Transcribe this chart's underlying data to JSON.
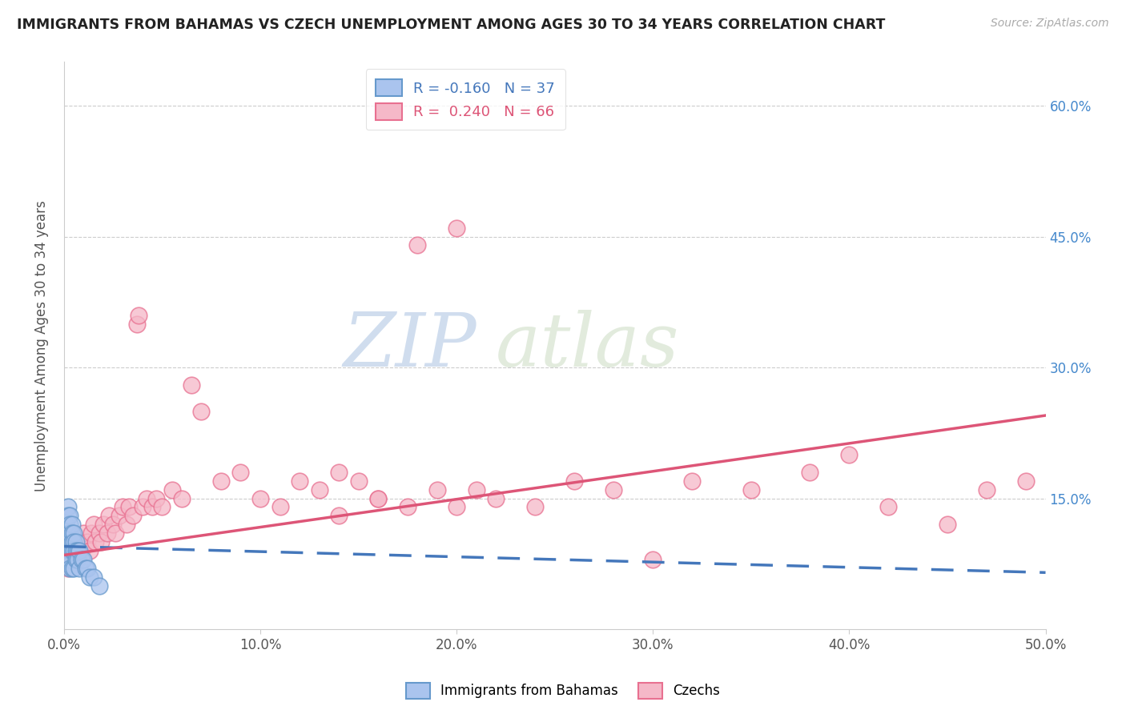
{
  "title": "IMMIGRANTS FROM BAHAMAS VS CZECH UNEMPLOYMENT AMONG AGES 30 TO 34 YEARS CORRELATION CHART",
  "source_text": "Source: ZipAtlas.com",
  "ylabel": "Unemployment Among Ages 30 to 34 years",
  "xlim": [
    0.0,
    0.5
  ],
  "ylim": [
    0.0,
    0.65
  ],
  "xtick_vals": [
    0.0,
    0.1,
    0.2,
    0.3,
    0.4,
    0.5
  ],
  "xtick_labels": [
    "0.0%",
    "10.0%",
    "20.0%",
    "30.0%",
    "40.0%",
    "50.0%"
  ],
  "ytick_vals": [
    0.0,
    0.15,
    0.3,
    0.45,
    0.6
  ],
  "right_ytick_labels": [
    "",
    "15.0%",
    "30.0%",
    "45.0%",
    "60.0%"
  ],
  "blue_R": -0.16,
  "blue_N": 37,
  "pink_R": 0.24,
  "pink_N": 66,
  "blue_color": "#aac4ee",
  "pink_color": "#f5b8c8",
  "blue_edge_color": "#6699cc",
  "pink_edge_color": "#e87090",
  "blue_line_color": "#4477bb",
  "pink_line_color": "#dd5577",
  "watermark_zip": "ZIP",
  "watermark_atlas": "atlas",
  "legend_label_blue": "Immigrants from Bahamas",
  "legend_label_pink": "Czechs",
  "blue_x": [
    0.001,
    0.001,
    0.001,
    0.002,
    0.002,
    0.002,
    0.002,
    0.002,
    0.003,
    0.003,
    0.003,
    0.003,
    0.003,
    0.003,
    0.004,
    0.004,
    0.004,
    0.004,
    0.004,
    0.005,
    0.005,
    0.005,
    0.005,
    0.006,
    0.006,
    0.006,
    0.007,
    0.007,
    0.008,
    0.008,
    0.009,
    0.01,
    0.011,
    0.012,
    0.013,
    0.015,
    0.018
  ],
  "blue_y": [
    0.12,
    0.1,
    0.09,
    0.14,
    0.13,
    0.11,
    0.1,
    0.08,
    0.13,
    0.12,
    0.11,
    0.09,
    0.08,
    0.07,
    0.12,
    0.11,
    0.1,
    0.09,
    0.07,
    0.11,
    0.1,
    0.09,
    0.07,
    0.1,
    0.09,
    0.08,
    0.09,
    0.08,
    0.09,
    0.07,
    0.08,
    0.08,
    0.07,
    0.07,
    0.06,
    0.06,
    0.05
  ],
  "pink_x": [
    0.002,
    0.004,
    0.005,
    0.006,
    0.007,
    0.008,
    0.009,
    0.01,
    0.012,
    0.013,
    0.014,
    0.015,
    0.016,
    0.018,
    0.019,
    0.02,
    0.022,
    0.023,
    0.025,
    0.026,
    0.028,
    0.03,
    0.032,
    0.033,
    0.035,
    0.037,
    0.038,
    0.04,
    0.042,
    0.045,
    0.047,
    0.05,
    0.055,
    0.06,
    0.065,
    0.07,
    0.08,
    0.09,
    0.1,
    0.11,
    0.12,
    0.13,
    0.14,
    0.15,
    0.16,
    0.175,
    0.19,
    0.2,
    0.21,
    0.22,
    0.24,
    0.26,
    0.28,
    0.3,
    0.32,
    0.35,
    0.38,
    0.4,
    0.42,
    0.45,
    0.47,
    0.49,
    0.2,
    0.18,
    0.16,
    0.14
  ],
  "pink_y": [
    0.07,
    0.09,
    0.1,
    0.08,
    0.09,
    0.1,
    0.09,
    0.11,
    0.1,
    0.09,
    0.11,
    0.12,
    0.1,
    0.11,
    0.1,
    0.12,
    0.11,
    0.13,
    0.12,
    0.11,
    0.13,
    0.14,
    0.12,
    0.14,
    0.13,
    0.35,
    0.36,
    0.14,
    0.15,
    0.14,
    0.15,
    0.14,
    0.16,
    0.15,
    0.28,
    0.25,
    0.17,
    0.18,
    0.15,
    0.14,
    0.17,
    0.16,
    0.18,
    0.17,
    0.15,
    0.14,
    0.16,
    0.14,
    0.16,
    0.15,
    0.14,
    0.17,
    0.16,
    0.08,
    0.17,
    0.16,
    0.18,
    0.2,
    0.14,
    0.12,
    0.16,
    0.17,
    0.46,
    0.44,
    0.15,
    0.13
  ],
  "blue_trend_x": [
    0.0,
    0.5
  ],
  "blue_trend_y": [
    0.095,
    0.065
  ],
  "pink_trend_x": [
    0.0,
    0.5
  ],
  "pink_trend_y": [
    0.085,
    0.245
  ]
}
